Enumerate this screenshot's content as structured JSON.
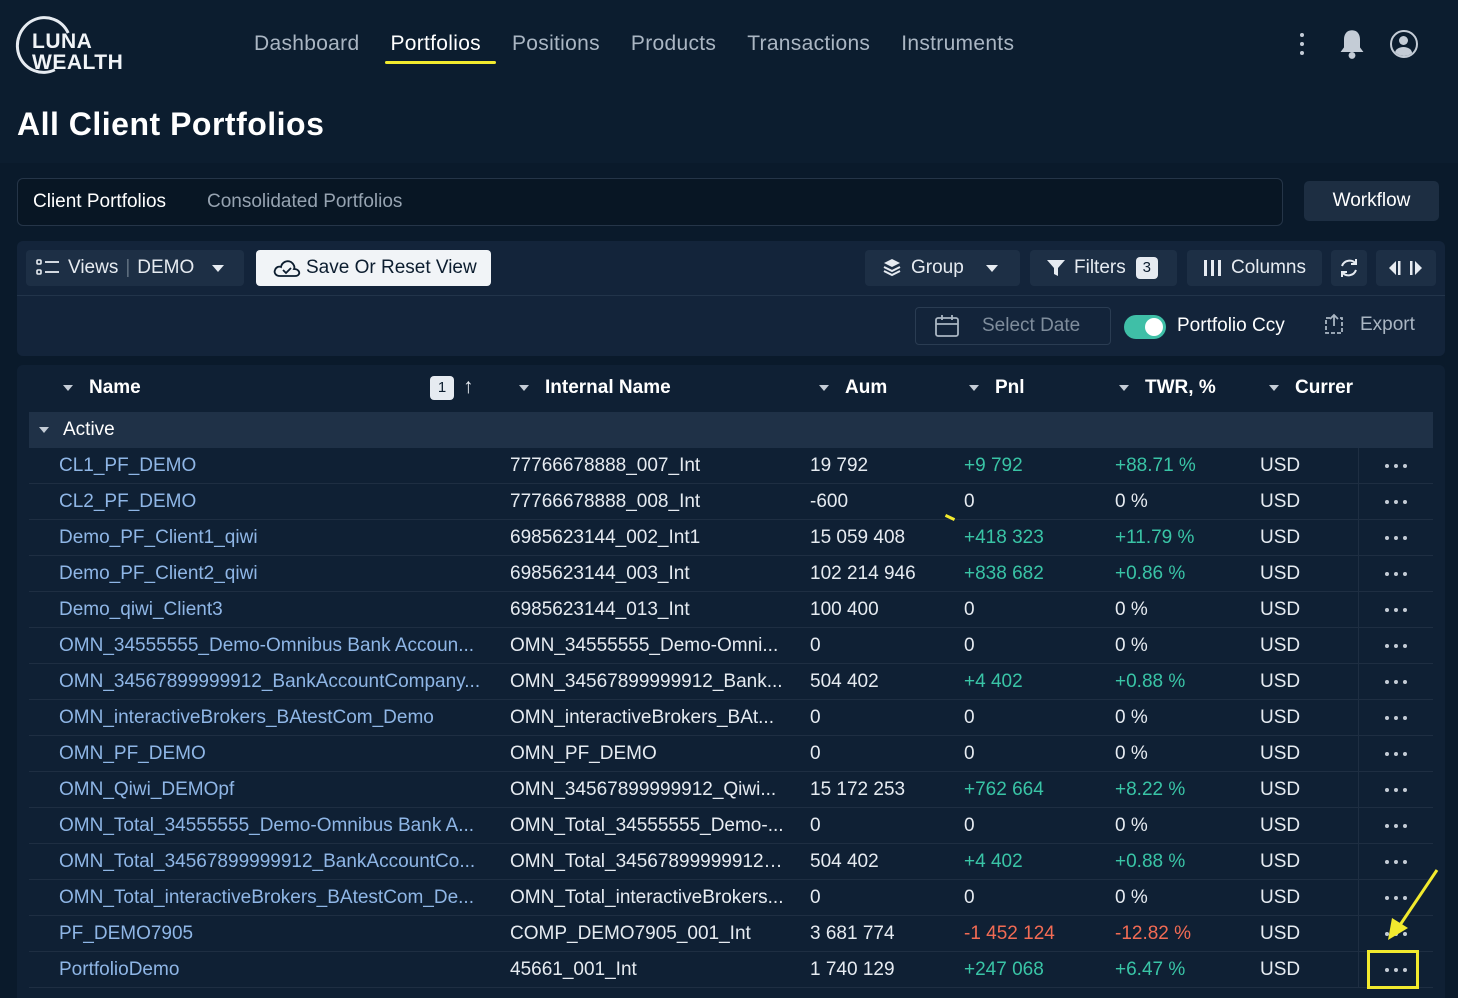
{
  "logo": {
    "line1": "LUNA",
    "line2": "WEALTH"
  },
  "nav": [
    "Dashboard",
    "Portfolios",
    "Positions",
    "Products",
    "Transactions",
    "Instruments"
  ],
  "page_title": "All Client Portfolios",
  "tabs": {
    "client": "Client Portfolios",
    "consolidated": "Consolidated Portfolios"
  },
  "workflow_label": "Workflow",
  "toolbar": {
    "views_label": "Views",
    "views_value": "DEMO",
    "save_label": "Save Or Reset View",
    "group_label": "Group",
    "filters_label": "Filters",
    "filters_count": "3",
    "columns_label": "Columns",
    "select_date_placeholder": "Select Date",
    "portfolio_ccy_label": "Portfolio Ccy",
    "export_label": "Export"
  },
  "grid": {
    "headers": {
      "name": "Name",
      "internal": "Internal Name",
      "aum": "Aum",
      "pnl": "Pnl",
      "twr": "TWR, %",
      "currency": "Currer"
    },
    "sort_index": "1",
    "sort_arrow": "↑",
    "group_label": "Active",
    "rows": [
      {
        "name": "CL1_PF_DEMO",
        "internal": "77766678888_007_Int",
        "aum": "19 792",
        "pnl": "+9 792",
        "twr": "+88.71 %",
        "ccy": "USD"
      },
      {
        "name": "CL2_PF_DEMO",
        "internal": "77766678888_008_Int",
        "aum": "-600",
        "pnl": "0",
        "twr": "0 %",
        "ccy": "USD"
      },
      {
        "name": "Demo_PF_Client1_qiwi",
        "internal": "6985623144_002_Int1",
        "aum": "15 059 408",
        "pnl": "+418 323",
        "twr": "+11.79 %",
        "ccy": "USD"
      },
      {
        "name": "Demo_PF_Client2_qiwi",
        "internal": "6985623144_003_Int",
        "aum": "102 214 946",
        "pnl": "+838 682",
        "twr": "+0.86 %",
        "ccy": "USD"
      },
      {
        "name": "Demo_qiwi_Client3",
        "internal": "6985623144_013_Int",
        "aum": "100 400",
        "pnl": "0",
        "twr": "0 %",
        "ccy": "USD"
      },
      {
        "name": "OMN_34555555_Demo-Omnibus Bank Accoun...",
        "internal": "OMN_34555555_Demo-Omni...",
        "aum": "0",
        "pnl": "0",
        "twr": "0 %",
        "ccy": "USD"
      },
      {
        "name": "OMN_34567899999912_BankAccountCompany...",
        "internal": "OMN_34567899999912_Bank...",
        "aum": "504 402",
        "pnl": "+4 402",
        "twr": "+0.88 %",
        "ccy": "USD"
      },
      {
        "name": "OMN_interactiveBrokers_BAtestCom_Demo",
        "internal": "OMN_interactiveBrokers_BAt...",
        "aum": "0",
        "pnl": "0",
        "twr": "0 %",
        "ccy": "USD"
      },
      {
        "name": "OMN_PF_DEMO",
        "internal": "OMN_PF_DEMO",
        "aum": "0",
        "pnl": "0",
        "twr": "0 %",
        "ccy": "USD"
      },
      {
        "name": "OMN_Qiwi_DEMOpf",
        "internal": "OMN_34567899999912_Qiwi...",
        "aum": "15 172 253",
        "pnl": "+762 664",
        "twr": "+8.22 %",
        "ccy": "USD"
      },
      {
        "name": "OMN_Total_34555555_Demo-Omnibus Bank A...",
        "internal": "OMN_Total_34555555_Demo-...",
        "aum": "0",
        "pnl": "0",
        "twr": "0 %",
        "ccy": "USD"
      },
      {
        "name": "OMN_Total_34567899999912_BankAccountCo...",
        "internal": "OMN_Total_34567899999912_...",
        "aum": "504 402",
        "pnl": "+4 402",
        "twr": "+0.88 %",
        "ccy": "USD"
      },
      {
        "name": "OMN_Total_interactiveBrokers_BAtestCom_De...",
        "internal": "OMN_Total_interactiveBrokers...",
        "aum": "0",
        "pnl": "0",
        "twr": "0 %",
        "ccy": "USD"
      },
      {
        "name": "PF_DEMO7905",
        "internal": "COMP_DEMO7905_001_Int",
        "aum": "3 681 774",
        "pnl": "-1 452 124",
        "twr": "-12.82 %",
        "ccy": "USD"
      },
      {
        "name": "PortfolioDemo",
        "internal": "45661_001_Int",
        "aum": "1 740 129",
        "pnl": "+247 068",
        "twr": "+6.47 %",
        "ccy": "USD"
      }
    ]
  },
  "colors": {
    "background": "#0a1a2b",
    "accent_yellow": "#f2ea2e",
    "positive": "#39c4a6",
    "negative": "#f26b54",
    "link": "#8fb6e6"
  }
}
